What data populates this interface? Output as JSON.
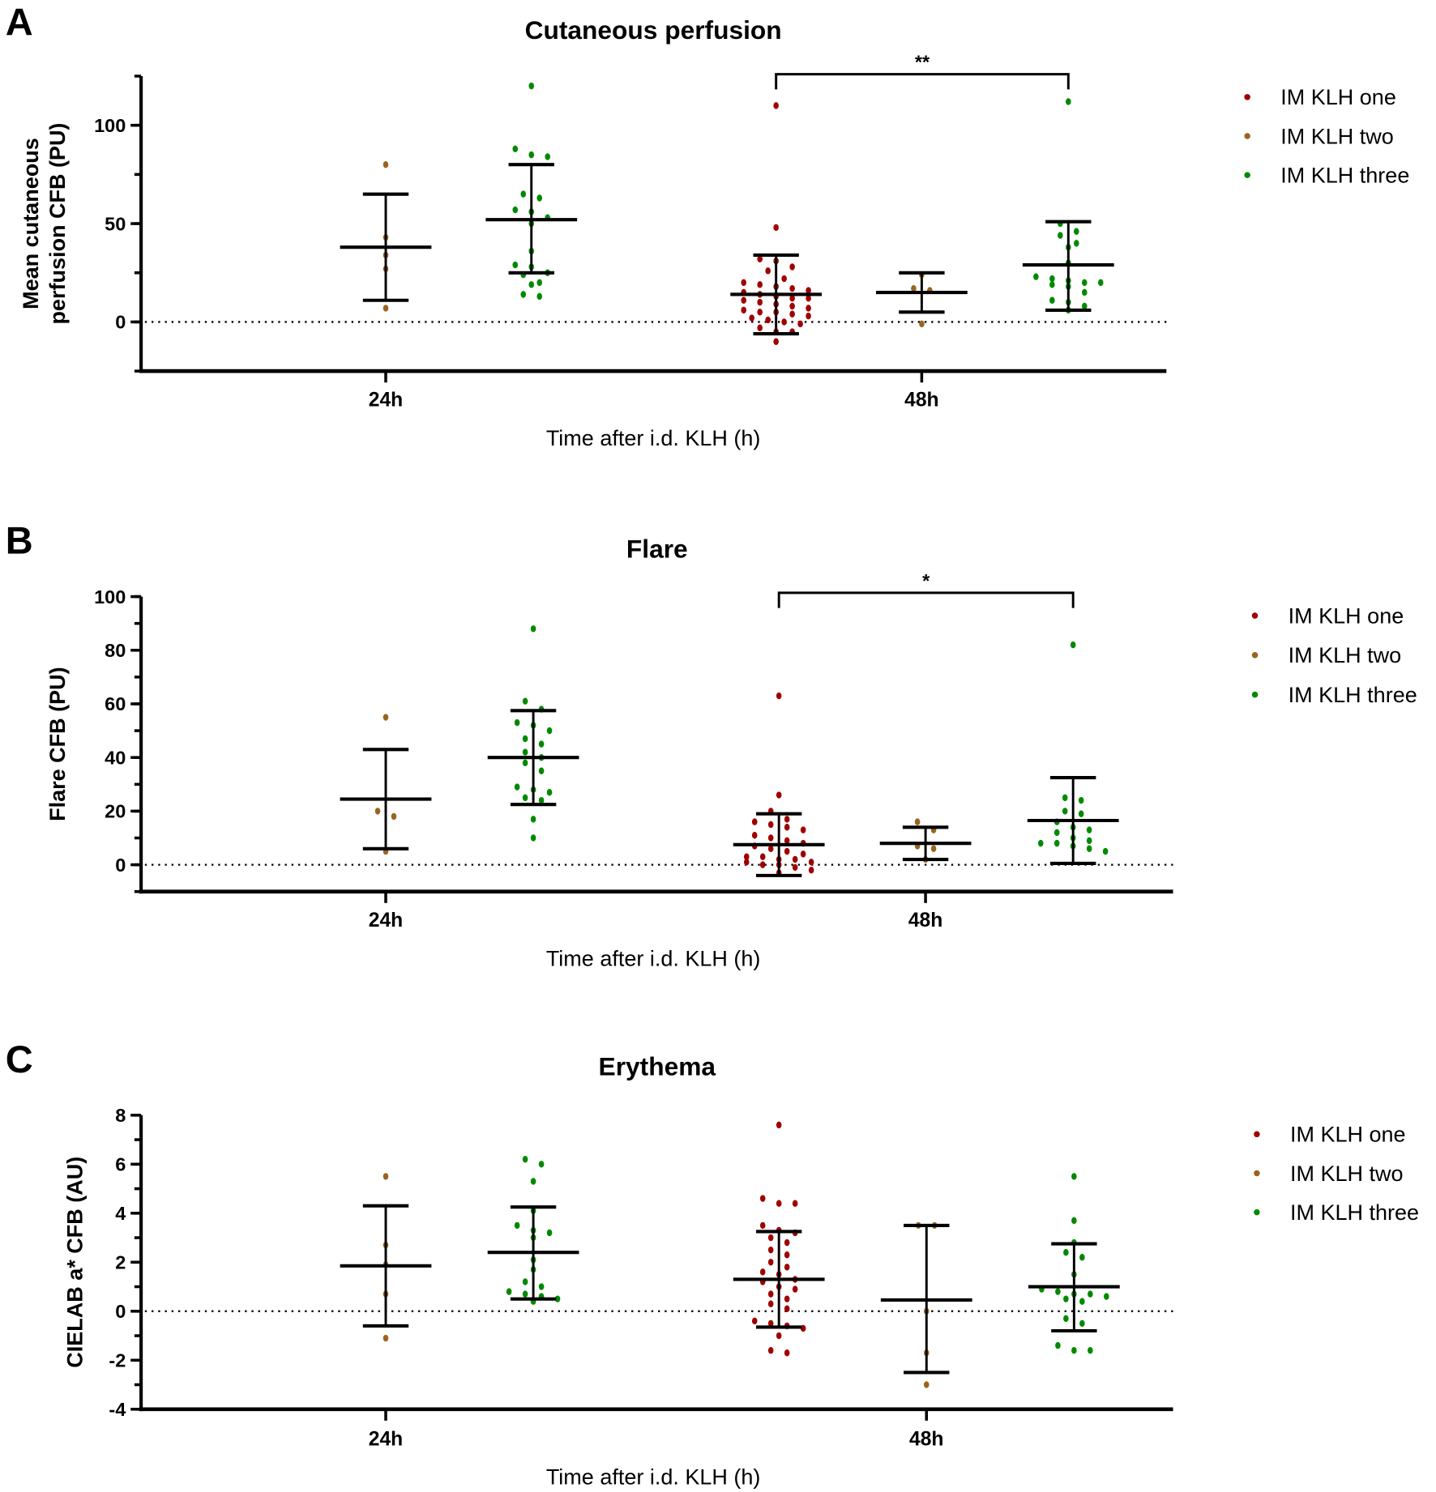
{
  "colors": {
    "IM KLH one": "#a00000",
    "IM KLH two": "#9a6420",
    "IM KLH three": "#008a00"
  },
  "chart_data": [
    {
      "panel_letter": "A",
      "type": "scatter",
      "title": "Cutaneous perfusion",
      "ylabel": [
        "Mean cutaneous",
        "perfusion CFB (PU)"
      ],
      "xlabel": "Time after i.d. KLH (h)",
      "categories": [
        "24h",
        "48h"
      ],
      "ylim": [
        -25,
        125
      ],
      "yticks": [
        0,
        50,
        100
      ],
      "minor_step": 25,
      "legend": [
        "IM KLH one",
        "IM KLH two",
        "IM KLH three"
      ],
      "legend_position": "top-right",
      "significance": {
        "from": "48h IM KLH one",
        "to": "48h IM KLH three",
        "label": "**"
      },
      "groups": [
        {
          "time": "24h",
          "series": "IM KLH two",
          "mean": 38,
          "sd_upper": 65,
          "sd_lower": 11,
          "values": [
            80,
            43,
            34,
            27,
            7
          ]
        },
        {
          "time": "24h",
          "series": "IM KLH three",
          "mean": 52,
          "sd_upper": 80,
          "sd_lower": 25,
          "values": [
            120,
            88,
            85,
            84,
            65,
            63,
            57,
            56,
            53,
            50,
            36,
            29,
            28,
            25,
            24,
            20,
            19,
            14,
            13
          ]
        },
        {
          "time": "48h",
          "series": "IM KLH one",
          "mean": 14,
          "sd_upper": 34,
          "sd_lower": -6,
          "values": [
            110,
            48,
            32,
            31,
            28,
            26,
            22,
            20,
            19,
            18,
            17,
            16,
            15,
            14,
            13,
            12,
            12,
            11,
            10,
            9,
            8,
            7,
            6,
            5,
            5,
            4,
            3,
            2,
            1,
            0,
            -1,
            -3,
            -5,
            -5,
            -10
          ]
        },
        {
          "time": "48h",
          "series": "IM KLH two",
          "mean": 15,
          "sd_upper": 25,
          "sd_lower": 5,
          "values": [
            24,
            17,
            16,
            -1
          ]
        },
        {
          "time": "48h",
          "series": "IM KLH three",
          "mean": 29,
          "sd_upper": 51,
          "sd_lower": 6,
          "values": [
            112,
            50,
            46,
            44,
            40,
            38,
            30,
            23,
            22,
            21,
            20,
            20,
            19,
            18,
            15,
            11,
            10,
            8,
            6
          ]
        }
      ]
    },
    {
      "panel_letter": "B",
      "type": "scatter",
      "title": "Flare",
      "ylabel": [
        "Flare CFB (PU)"
      ],
      "xlabel": "Time after i.d. KLH (h)",
      "categories": [
        "24h",
        "48h"
      ],
      "ylim": [
        -10,
        100
      ],
      "yticks": [
        0,
        20,
        40,
        60,
        80,
        100
      ],
      "minor_step": 10,
      "legend": [
        "IM KLH one",
        "IM KLH two",
        "IM KLH three"
      ],
      "legend_position": "top-right",
      "significance": {
        "from": "48h IM KLH one",
        "to": "48h IM KLH three",
        "label": "*"
      },
      "groups": [
        {
          "time": "24h",
          "series": "IM KLH two",
          "mean": 24.5,
          "sd_upper": 43,
          "sd_lower": 6,
          "values": [
            55,
            20,
            18,
            5
          ]
        },
        {
          "time": "24h",
          "series": "IM KLH three",
          "mean": 40,
          "sd_upper": 57.5,
          "sd_lower": 22.5,
          "values": [
            88,
            61,
            58,
            53,
            52,
            50,
            47,
            45,
            42,
            40,
            38,
            35,
            29,
            28,
            27,
            25,
            24,
            17,
            10
          ]
        },
        {
          "time": "48h",
          "series": "IM KLH one",
          "mean": 7.5,
          "sd_upper": 19,
          "sd_lower": -4,
          "values": [
            63,
            26,
            20,
            17,
            16,
            15,
            14,
            13,
            11,
            10,
            9,
            8,
            7,
            6,
            5,
            4,
            3,
            3,
            2,
            2,
            1,
            1,
            0,
            0,
            -1,
            -2,
            -3
          ]
        },
        {
          "time": "48h",
          "series": "IM KLH two",
          "mean": 8,
          "sd_upper": 14,
          "sd_lower": 2,
          "values": [
            16,
            13,
            7,
            6,
            2
          ]
        },
        {
          "time": "48h",
          "series": "IM KLH three",
          "mean": 16.5,
          "sd_upper": 32.5,
          "sd_lower": 0.5,
          "values": [
            82,
            25,
            24,
            20,
            19,
            16,
            14,
            13,
            12,
            10,
            9,
            8,
            8,
            7,
            6,
            5
          ]
        }
      ]
    },
    {
      "panel_letter": "C",
      "type": "scatter",
      "title": "Erythema",
      "ylabel": [
        "CIELAB a* CFB (AU)"
      ],
      "xlabel": "Time after i.d. KLH (h)",
      "categories": [
        "24h",
        "48h"
      ],
      "ylim": [
        -4,
        8
      ],
      "yticks": [
        -4,
        -2,
        0,
        2,
        4,
        6,
        8
      ],
      "minor_step": 1,
      "legend": [
        "IM KLH one",
        "IM KLH two",
        "IM KLH three"
      ],
      "legend_position": "top-right",
      "significance": null,
      "groups": [
        {
          "time": "24h",
          "series": "IM KLH two",
          "mean": 1.85,
          "sd_upper": 4.3,
          "sd_lower": -0.6,
          "values": [
            5.5,
            2.7,
            1.9,
            0.7,
            -1.1
          ]
        },
        {
          "time": "24h",
          "series": "IM KLH three",
          "mean": 2.4,
          "sd_upper": 4.25,
          "sd_lower": 0.5,
          "values": [
            6.2,
            6.0,
            5.3,
            4.1,
            3.5,
            3.3,
            3.2,
            3.0,
            2.1,
            1.7,
            1.2,
            1.0,
            0.8,
            0.7,
            0.6,
            0.5,
            0.4
          ]
        },
        {
          "time": "48h",
          "series": "IM KLH one",
          "mean": 1.3,
          "sd_upper": 3.25,
          "sd_lower": -0.65,
          "values": [
            7.6,
            4.6,
            4.4,
            4.4,
            3.5,
            3.3,
            3.2,
            3.0,
            2.8,
            2.5,
            2.3,
            2.0,
            1.8,
            1.6,
            1.5,
            1.3,
            1.2,
            1.0,
            0.9,
            0.7,
            0.5,
            0.3,
            0.1,
            -0.4,
            -0.5,
            -0.6,
            -0.7,
            -1.0,
            -1.6,
            -1.7
          ]
        },
        {
          "time": "48h",
          "series": "IM KLH two",
          "mean": 0.46,
          "sd_upper": 3.5,
          "sd_lower": -2.5,
          "values": [
            3.5,
            3.5,
            0.0,
            -1.7,
            -3.0
          ]
        },
        {
          "time": "48h",
          "series": "IM KLH three",
          "mean": 1.0,
          "sd_upper": 2.75,
          "sd_lower": -0.8,
          "values": [
            5.5,
            3.7,
            2.8,
            2.4,
            2.2,
            1.5,
            0.9,
            0.8,
            0.7,
            0.7,
            0.6,
            0.5,
            0.4,
            -0.3,
            -0.5,
            -1.4,
            -1.6,
            -1.6
          ]
        }
      ]
    }
  ]
}
